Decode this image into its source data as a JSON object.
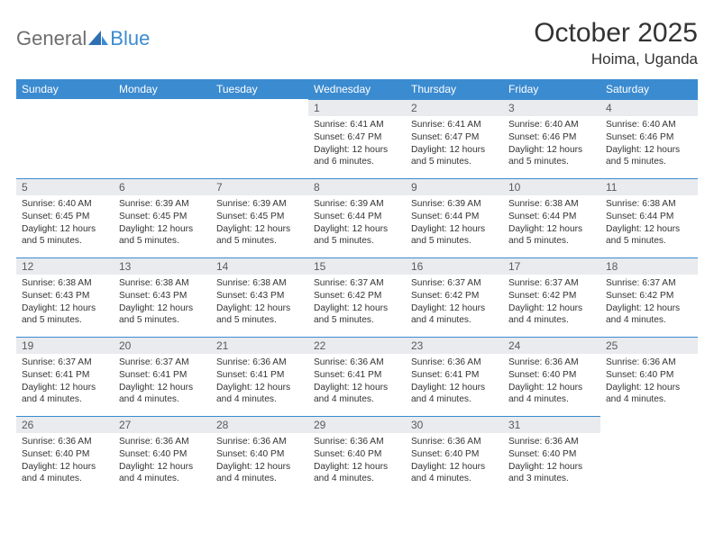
{
  "logo": {
    "general": "General",
    "blue": "Blue"
  },
  "header": {
    "month_title": "October 2025",
    "location": "Hoima, Uganda"
  },
  "colors": {
    "accent": "#3b8bd0",
    "header_bg": "#3b8bd0",
    "daynum_bg": "#e9ebee",
    "text": "#333333",
    "logo_gray": "#6e6e6e"
  },
  "days_of_week": [
    "Sunday",
    "Monday",
    "Tuesday",
    "Wednesday",
    "Thursday",
    "Friday",
    "Saturday"
  ],
  "weeks": [
    [
      {
        "empty": true
      },
      {
        "empty": true
      },
      {
        "empty": true
      },
      {
        "num": "1",
        "sunrise": "Sunrise: 6:41 AM",
        "sunset": "Sunset: 6:47 PM",
        "daylight1": "Daylight: 12 hours",
        "daylight2": "and 6 minutes."
      },
      {
        "num": "2",
        "sunrise": "Sunrise: 6:41 AM",
        "sunset": "Sunset: 6:47 PM",
        "daylight1": "Daylight: 12 hours",
        "daylight2": "and 5 minutes."
      },
      {
        "num": "3",
        "sunrise": "Sunrise: 6:40 AM",
        "sunset": "Sunset: 6:46 PM",
        "daylight1": "Daylight: 12 hours",
        "daylight2": "and 5 minutes."
      },
      {
        "num": "4",
        "sunrise": "Sunrise: 6:40 AM",
        "sunset": "Sunset: 6:46 PM",
        "daylight1": "Daylight: 12 hours",
        "daylight2": "and 5 minutes."
      }
    ],
    [
      {
        "num": "5",
        "sunrise": "Sunrise: 6:40 AM",
        "sunset": "Sunset: 6:45 PM",
        "daylight1": "Daylight: 12 hours",
        "daylight2": "and 5 minutes."
      },
      {
        "num": "6",
        "sunrise": "Sunrise: 6:39 AM",
        "sunset": "Sunset: 6:45 PM",
        "daylight1": "Daylight: 12 hours",
        "daylight2": "and 5 minutes."
      },
      {
        "num": "7",
        "sunrise": "Sunrise: 6:39 AM",
        "sunset": "Sunset: 6:45 PM",
        "daylight1": "Daylight: 12 hours",
        "daylight2": "and 5 minutes."
      },
      {
        "num": "8",
        "sunrise": "Sunrise: 6:39 AM",
        "sunset": "Sunset: 6:44 PM",
        "daylight1": "Daylight: 12 hours",
        "daylight2": "and 5 minutes."
      },
      {
        "num": "9",
        "sunrise": "Sunrise: 6:39 AM",
        "sunset": "Sunset: 6:44 PM",
        "daylight1": "Daylight: 12 hours",
        "daylight2": "and 5 minutes."
      },
      {
        "num": "10",
        "sunrise": "Sunrise: 6:38 AM",
        "sunset": "Sunset: 6:44 PM",
        "daylight1": "Daylight: 12 hours",
        "daylight2": "and 5 minutes."
      },
      {
        "num": "11",
        "sunrise": "Sunrise: 6:38 AM",
        "sunset": "Sunset: 6:44 PM",
        "daylight1": "Daylight: 12 hours",
        "daylight2": "and 5 minutes."
      }
    ],
    [
      {
        "num": "12",
        "sunrise": "Sunrise: 6:38 AM",
        "sunset": "Sunset: 6:43 PM",
        "daylight1": "Daylight: 12 hours",
        "daylight2": "and 5 minutes."
      },
      {
        "num": "13",
        "sunrise": "Sunrise: 6:38 AM",
        "sunset": "Sunset: 6:43 PM",
        "daylight1": "Daylight: 12 hours",
        "daylight2": "and 5 minutes."
      },
      {
        "num": "14",
        "sunrise": "Sunrise: 6:38 AM",
        "sunset": "Sunset: 6:43 PM",
        "daylight1": "Daylight: 12 hours",
        "daylight2": "and 5 minutes."
      },
      {
        "num": "15",
        "sunrise": "Sunrise: 6:37 AM",
        "sunset": "Sunset: 6:42 PM",
        "daylight1": "Daylight: 12 hours",
        "daylight2": "and 5 minutes."
      },
      {
        "num": "16",
        "sunrise": "Sunrise: 6:37 AM",
        "sunset": "Sunset: 6:42 PM",
        "daylight1": "Daylight: 12 hours",
        "daylight2": "and 4 minutes."
      },
      {
        "num": "17",
        "sunrise": "Sunrise: 6:37 AM",
        "sunset": "Sunset: 6:42 PM",
        "daylight1": "Daylight: 12 hours",
        "daylight2": "and 4 minutes."
      },
      {
        "num": "18",
        "sunrise": "Sunrise: 6:37 AM",
        "sunset": "Sunset: 6:42 PM",
        "daylight1": "Daylight: 12 hours",
        "daylight2": "and 4 minutes."
      }
    ],
    [
      {
        "num": "19",
        "sunrise": "Sunrise: 6:37 AM",
        "sunset": "Sunset: 6:41 PM",
        "daylight1": "Daylight: 12 hours",
        "daylight2": "and 4 minutes."
      },
      {
        "num": "20",
        "sunrise": "Sunrise: 6:37 AM",
        "sunset": "Sunset: 6:41 PM",
        "daylight1": "Daylight: 12 hours",
        "daylight2": "and 4 minutes."
      },
      {
        "num": "21",
        "sunrise": "Sunrise: 6:36 AM",
        "sunset": "Sunset: 6:41 PM",
        "daylight1": "Daylight: 12 hours",
        "daylight2": "and 4 minutes."
      },
      {
        "num": "22",
        "sunrise": "Sunrise: 6:36 AM",
        "sunset": "Sunset: 6:41 PM",
        "daylight1": "Daylight: 12 hours",
        "daylight2": "and 4 minutes."
      },
      {
        "num": "23",
        "sunrise": "Sunrise: 6:36 AM",
        "sunset": "Sunset: 6:41 PM",
        "daylight1": "Daylight: 12 hours",
        "daylight2": "and 4 minutes."
      },
      {
        "num": "24",
        "sunrise": "Sunrise: 6:36 AM",
        "sunset": "Sunset: 6:40 PM",
        "daylight1": "Daylight: 12 hours",
        "daylight2": "and 4 minutes."
      },
      {
        "num": "25",
        "sunrise": "Sunrise: 6:36 AM",
        "sunset": "Sunset: 6:40 PM",
        "daylight1": "Daylight: 12 hours",
        "daylight2": "and 4 minutes."
      }
    ],
    [
      {
        "num": "26",
        "sunrise": "Sunrise: 6:36 AM",
        "sunset": "Sunset: 6:40 PM",
        "daylight1": "Daylight: 12 hours",
        "daylight2": "and 4 minutes."
      },
      {
        "num": "27",
        "sunrise": "Sunrise: 6:36 AM",
        "sunset": "Sunset: 6:40 PM",
        "daylight1": "Daylight: 12 hours",
        "daylight2": "and 4 minutes."
      },
      {
        "num": "28",
        "sunrise": "Sunrise: 6:36 AM",
        "sunset": "Sunset: 6:40 PM",
        "daylight1": "Daylight: 12 hours",
        "daylight2": "and 4 minutes."
      },
      {
        "num": "29",
        "sunrise": "Sunrise: 6:36 AM",
        "sunset": "Sunset: 6:40 PM",
        "daylight1": "Daylight: 12 hours",
        "daylight2": "and 4 minutes."
      },
      {
        "num": "30",
        "sunrise": "Sunrise: 6:36 AM",
        "sunset": "Sunset: 6:40 PM",
        "daylight1": "Daylight: 12 hours",
        "daylight2": "and 4 minutes."
      },
      {
        "num": "31",
        "sunrise": "Sunrise: 6:36 AM",
        "sunset": "Sunset: 6:40 PM",
        "daylight1": "Daylight: 12 hours",
        "daylight2": "and 3 minutes."
      },
      {
        "empty": true
      }
    ]
  ]
}
